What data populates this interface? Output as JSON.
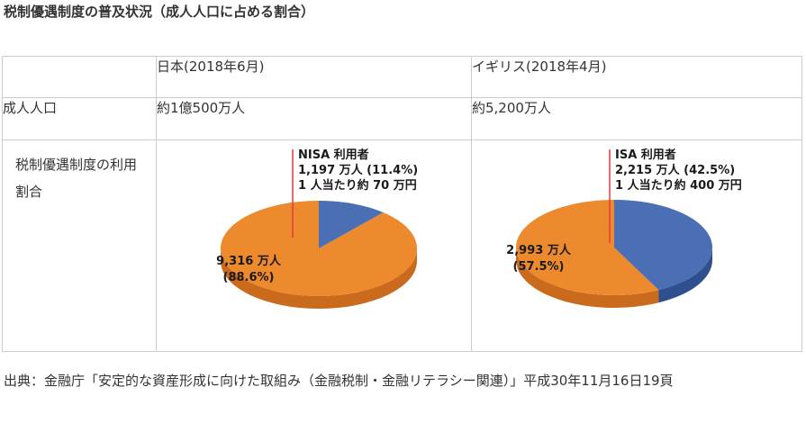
{
  "page_title": "税制優遇制度の普及状況（成人人口に占める割合）",
  "table": {
    "header": [
      "",
      "日本(2018年6月)",
      "イギリス(2018年4月)"
    ],
    "row1": {
      "label": "成人人口",
      "japan": "約1億500万人",
      "uk": "約5,200万人"
    },
    "row2": {
      "label": "税制優遇制度の利用割合"
    }
  },
  "chart_data": [
    {
      "type": "pie",
      "slices": [
        {
          "label": "9,316 万人",
          "value": 88.6,
          "pct_label": "(88.6%)",
          "color": "#ED8A2E"
        },
        {
          "label": "NISA 利用者",
          "value": 11.4,
          "count_label": "1,197 万人 (11.4%)",
          "note": "1 人当たり約 70 万円",
          "color": "#4A6FB5"
        }
      ]
    },
    {
      "type": "pie",
      "slices": [
        {
          "label": "2,993 万人",
          "value": 57.5,
          "pct_label": "(57.5%)",
          "color": "#ED8A2E"
        },
        {
          "label": "ISA 利用者",
          "value": 42.5,
          "count_label": "2,215 万人 (42.5%)",
          "note": "1 人当たり約 400 万円",
          "color": "#4A6FB5"
        }
      ]
    }
  ],
  "source": "出典：金融庁「安定的な資産形成に向けた取組み（金融税制・金融リテラシー関連）」平成30年11月16日19頁",
  "colors": {
    "orange": "#ED8A2E",
    "blue": "#4A6FB5",
    "orange_dark": "#C96A1C",
    "blue_dark": "#2F4F8F",
    "leader": "#E03C3C"
  }
}
